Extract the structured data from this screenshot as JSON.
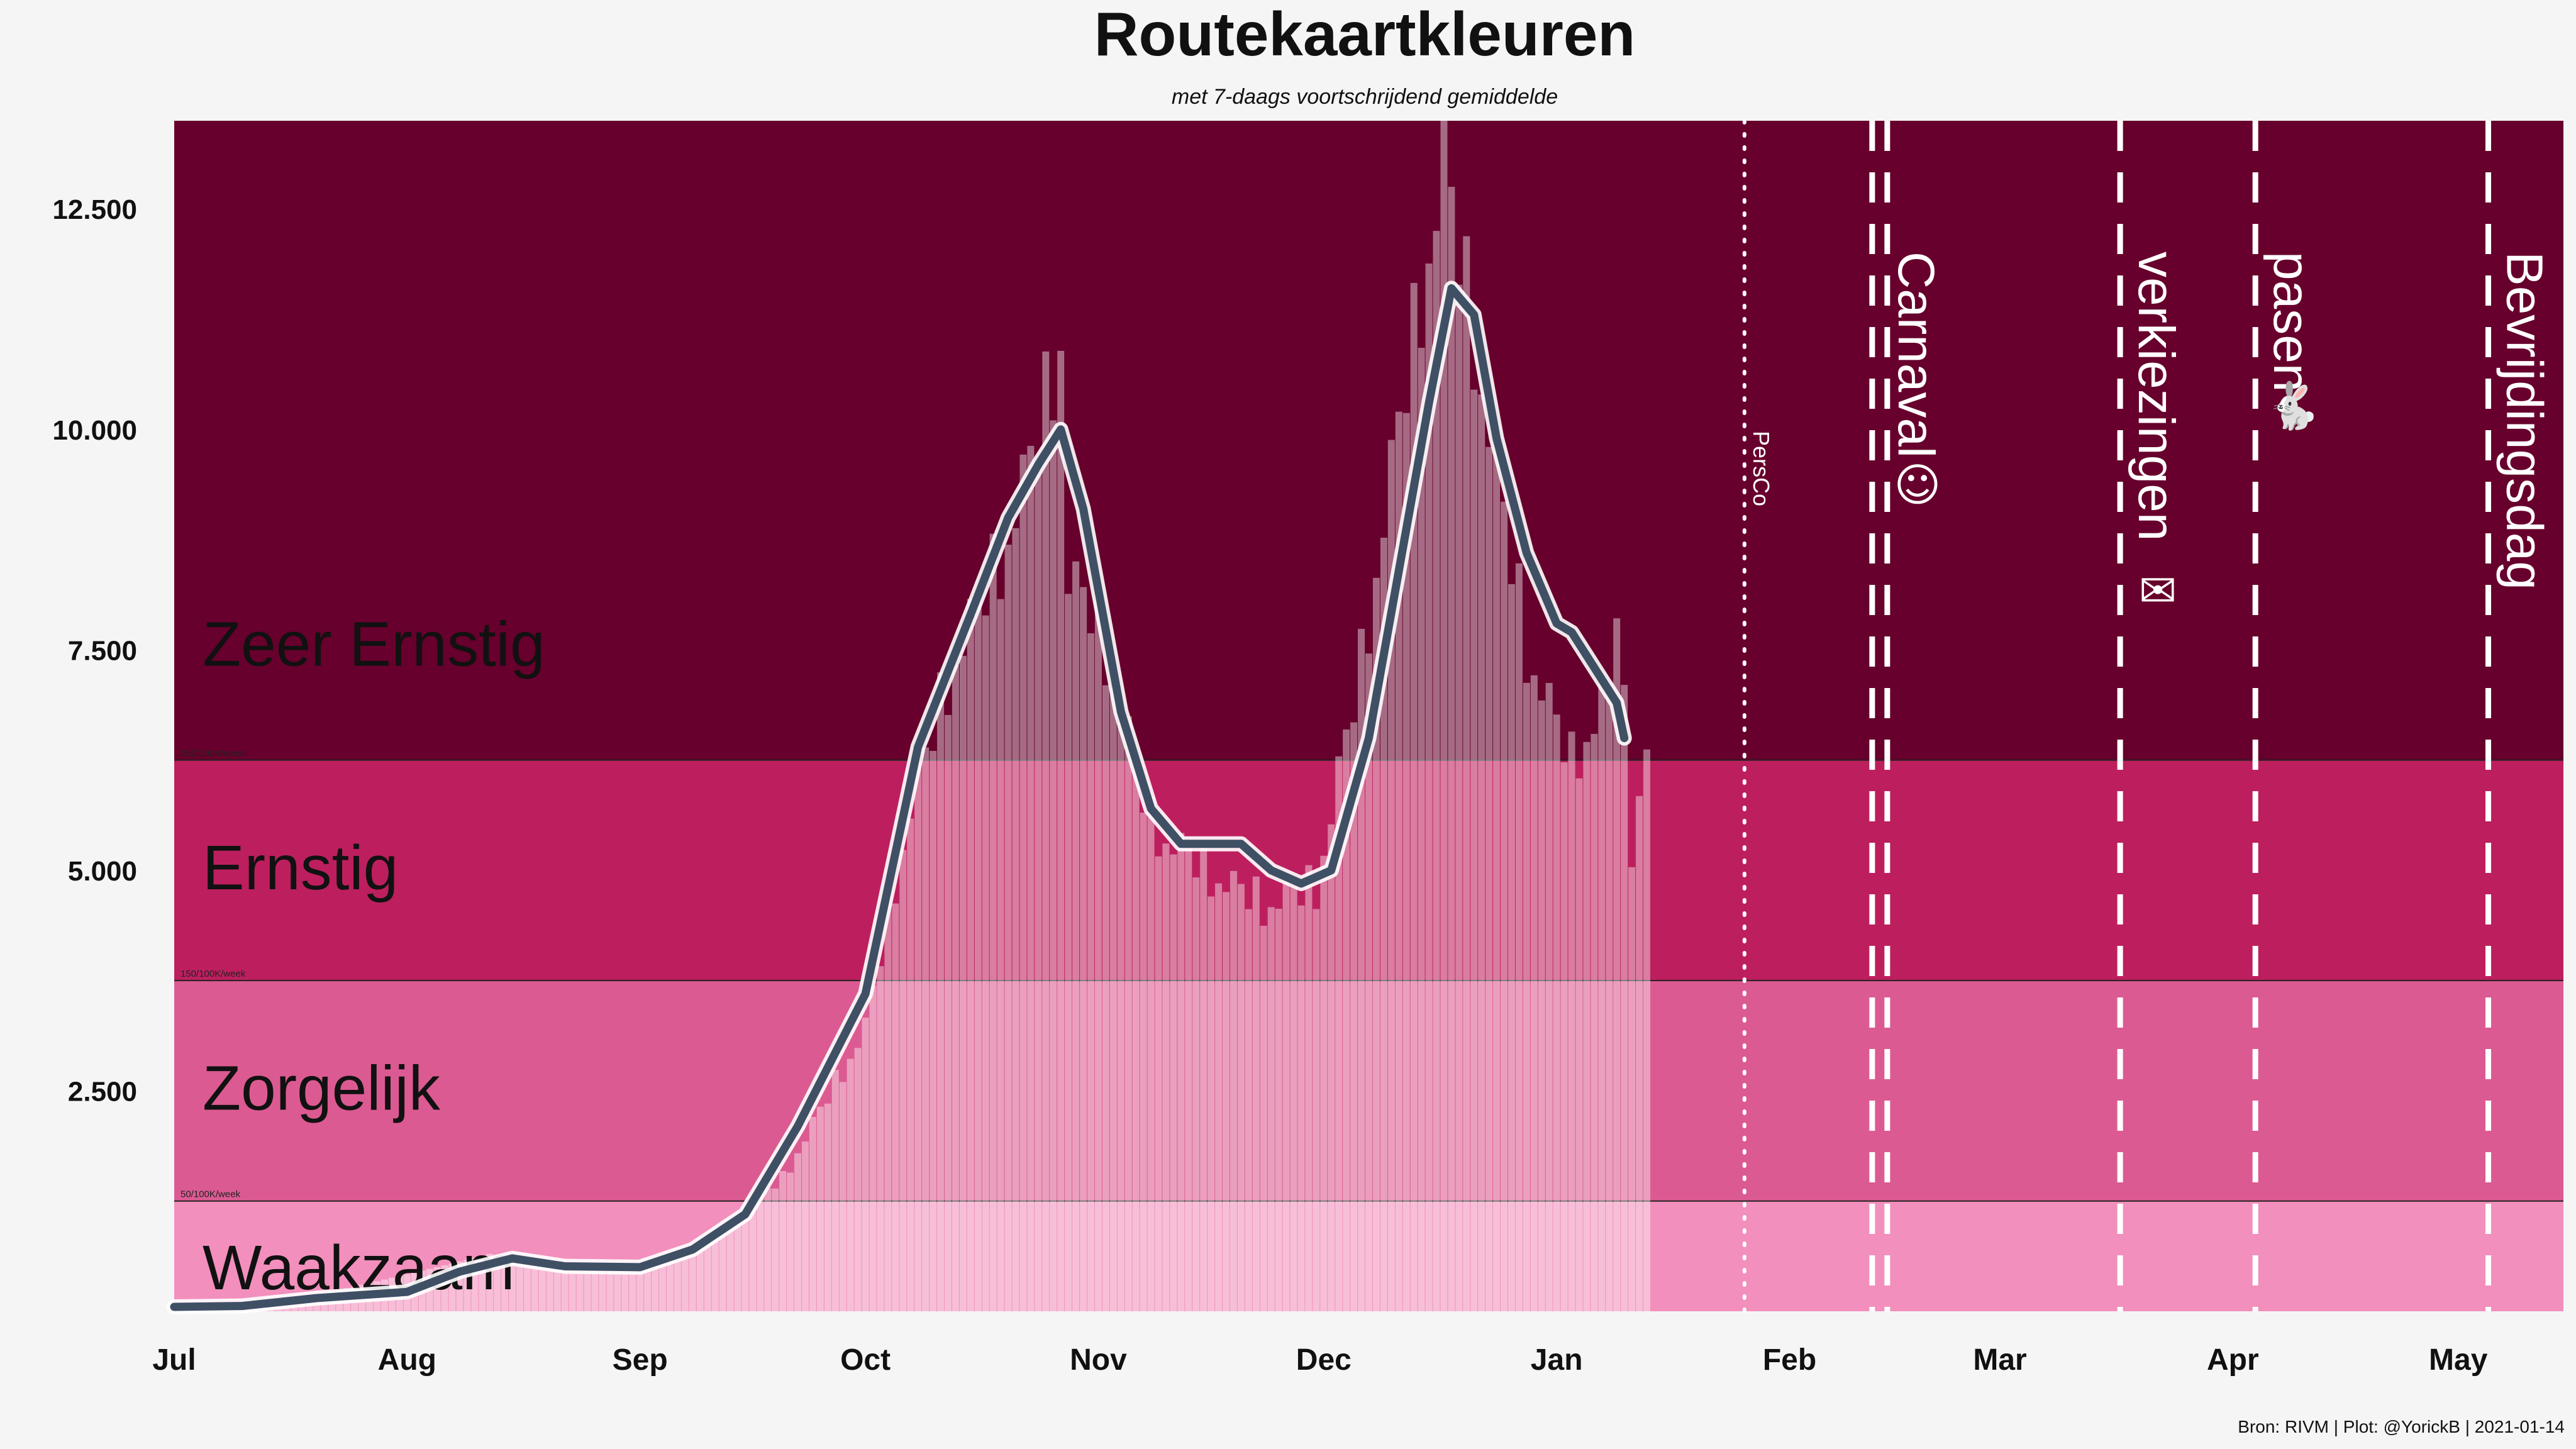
{
  "chart_data": {
    "type": "bar",
    "title": "Routekaartkleuren",
    "subtitle": "met 7-daags voortschrijdend gemiddelde",
    "caption": "Bron: RIVM | Plot: @YorickB  |  2021-01-14",
    "x_range": [
      "2020-07-01",
      "2021-05-15"
    ],
    "ylim": [
      0,
      13500
    ],
    "yticks": [
      {
        "value": 2500,
        "label": "2.500"
      },
      {
        "value": 5000,
        "label": "5.000"
      },
      {
        "value": 7500,
        "label": "7.500"
      },
      {
        "value": 10000,
        "label": "10.000"
      },
      {
        "value": 12500,
        "label": "12.500"
      }
    ],
    "xticks": [
      {
        "date": "2020-07-01",
        "label": "Jul"
      },
      {
        "date": "2020-08-01",
        "label": "Aug"
      },
      {
        "date": "2020-09-01",
        "label": "Sep"
      },
      {
        "date": "2020-10-01",
        "label": "Oct"
      },
      {
        "date": "2020-11-01",
        "label": "Nov"
      },
      {
        "date": "2020-12-01",
        "label": "Dec"
      },
      {
        "date": "2021-01-01",
        "label": "Jan"
      },
      {
        "date": "2021-02-01",
        "label": "Feb"
      },
      {
        "date": "2021-03-01",
        "label": "Mar"
      },
      {
        "date": "2021-04-01",
        "label": "Apr"
      },
      {
        "date": "2021-05-01",
        "label": "May"
      }
    ],
    "bands": [
      {
        "name": "Waakzaam",
        "from": 0,
        "to": 1250,
        "color": "#f28fbc",
        "threshold_label": "50/100K/week"
      },
      {
        "name": "Zorgelijk",
        "from": 1250,
        "to": 3750,
        "color": "#dc5a92",
        "threshold_label": "150/100K/week"
      },
      {
        "name": "Ernstig",
        "from": 3750,
        "to": 6250,
        "color": "#bd1f5e",
        "threshold_label": "250/100K/week"
      },
      {
        "name": "Zeer Ernstig",
        "from": 6250,
        "to": 13500,
        "color": "#67002c",
        "threshold_label": ""
      }
    ],
    "events": [
      {
        "date": "2021-01-26",
        "label": "PersCo",
        "style": "dotted",
        "icon": "",
        "icon_name": ""
      },
      {
        "date": "2021-02-13",
        "label": "Carnaval",
        "style": "double-dashed",
        "icon": "☺",
        "icon_name": "clown-face-icon"
      },
      {
        "date": "2021-03-17",
        "label": "verkiezingen",
        "style": "dashed",
        "icon": "✉",
        "icon_name": "ballot-box-icon"
      },
      {
        "date": "2021-04-04",
        "label": "pasen",
        "style": "dashed",
        "icon": "🐇",
        "icon_name": "easter-bunny-icon"
      },
      {
        "date": "2021-05-05",
        "label": "Bevrijdingsdag",
        "style": "dashed",
        "icon": "",
        "icon_name": ""
      }
    ],
    "daily_cases_keypoints": [
      [
        "2020-07-01",
        50
      ],
      [
        "2020-07-20",
        180
      ],
      [
        "2020-08-05",
        500
      ],
      [
        "2020-08-12",
        650
      ],
      [
        "2020-08-22",
        550
      ],
      [
        "2020-09-01",
        500
      ],
      [
        "2020-09-08",
        700
      ],
      [
        "2020-09-20",
        1500
      ],
      [
        "2020-10-01",
        3200
      ],
      [
        "2020-10-07",
        5700
      ],
      [
        "2020-10-13",
        7400
      ],
      [
        "2020-10-19",
        8500
      ],
      [
        "2020-10-24",
        9900
      ],
      [
        "2020-10-27",
        11000
      ],
      [
        "2020-10-28",
        8300
      ],
      [
        "2020-11-01",
        7800
      ],
      [
        "2020-11-08",
        5500
      ],
      [
        "2020-11-15",
        5000
      ],
      [
        "2020-11-23",
        4600
      ],
      [
        "2020-11-30",
        4800
      ],
      [
        "2020-12-06",
        7300
      ],
      [
        "2020-12-10",
        9500
      ],
      [
        "2020-12-14",
        11500
      ],
      [
        "2020-12-17",
        13000
      ],
      [
        "2020-12-21",
        11000
      ],
      [
        "2020-12-25",
        9000
      ],
      [
        "2020-12-28",
        7500
      ],
      [
        "2021-01-03",
        6200
      ],
      [
        "2021-01-08",
        7000
      ],
      [
        "2021-01-09",
        8100
      ],
      [
        "2021-01-11",
        5300
      ],
      [
        "2021-01-13",
        6500
      ]
    ],
    "rolling_avg_keypoints": [
      [
        "2020-07-01",
        50
      ],
      [
        "2020-07-10",
        60
      ],
      [
        "2020-07-20",
        150
      ],
      [
        "2020-08-01",
        220
      ],
      [
        "2020-08-08",
        450
      ],
      [
        "2020-08-15",
        600
      ],
      [
        "2020-08-22",
        510
      ],
      [
        "2020-09-01",
        500
      ],
      [
        "2020-09-08",
        700
      ],
      [
        "2020-09-15",
        1100
      ],
      [
        "2020-09-22",
        2100
      ],
      [
        "2020-10-01",
        3600
      ],
      [
        "2020-10-08",
        6400
      ],
      [
        "2020-10-15",
        7900
      ],
      [
        "2020-10-20",
        9000
      ],
      [
        "2020-10-24",
        9600
      ],
      [
        "2020-10-27",
        10000
      ],
      [
        "2020-10-30",
        9100
      ],
      [
        "2020-11-04",
        6800
      ],
      [
        "2020-11-08",
        5700
      ],
      [
        "2020-11-12",
        5300
      ],
      [
        "2020-11-20",
        5300
      ],
      [
        "2020-11-24",
        5000
      ],
      [
        "2020-11-28",
        4850
      ],
      [
        "2020-12-02",
        5000
      ],
      [
        "2020-12-07",
        6500
      ],
      [
        "2020-12-11",
        8400
      ],
      [
        "2020-12-15",
        10300
      ],
      [
        "2020-12-18",
        11600
      ],
      [
        "2020-12-21",
        11300
      ],
      [
        "2020-12-24",
        9900
      ],
      [
        "2020-12-28",
        8600
      ],
      [
        "2021-01-01",
        7800
      ],
      [
        "2021-01-03",
        7700
      ],
      [
        "2021-01-06",
        7300
      ],
      [
        "2021-01-09",
        6900
      ],
      [
        "2021-01-10",
        6500
      ]
    ],
    "bars_end_date": "2021-01-13",
    "line_color": "#3f5065",
    "bar_color": "#ffffff"
  }
}
